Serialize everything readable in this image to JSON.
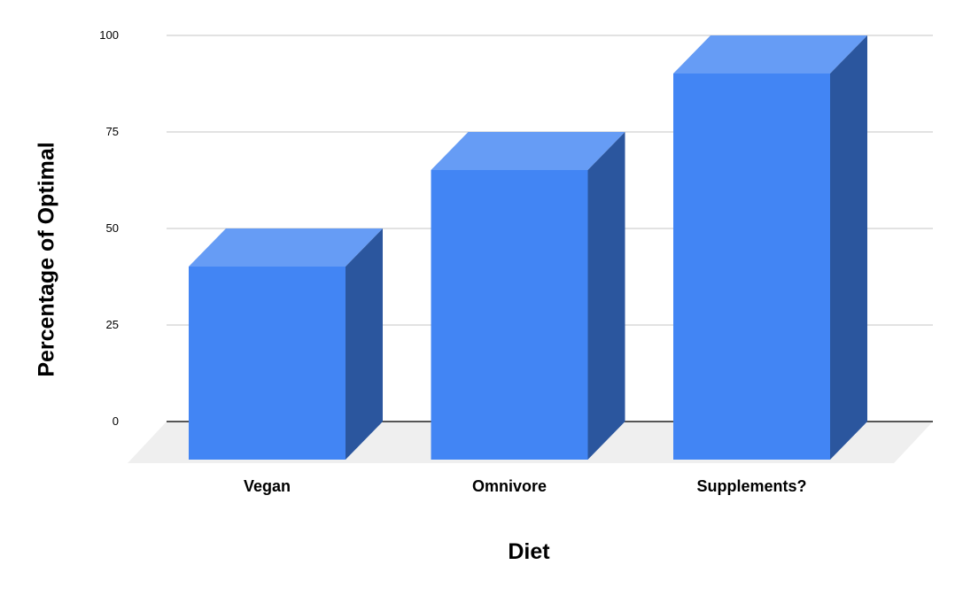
{
  "chart_data": {
    "type": "bar",
    "style": "3d-column",
    "title": "",
    "xlabel": "Diet",
    "ylabel": "Percentage of Optimal",
    "categories": [
      "Vegan",
      "Omnivore",
      "Supplements?"
    ],
    "series": [
      {
        "name": "Percentage of Optimal",
        "values": [
          50,
          75,
          100
        ]
      }
    ],
    "yticks": [
      0,
      25,
      50,
      75,
      100
    ],
    "ylim": [
      0,
      100
    ],
    "grid": true,
    "legend_position": "none",
    "colors": {
      "bar_front": "#4285F4",
      "bar_top": "#669CF5",
      "bar_side": "#2B569E",
      "gridline": "#D9D9D9",
      "zero_line": "#212121",
      "floor": "#EFEFEF",
      "text": "#000000"
    }
  }
}
